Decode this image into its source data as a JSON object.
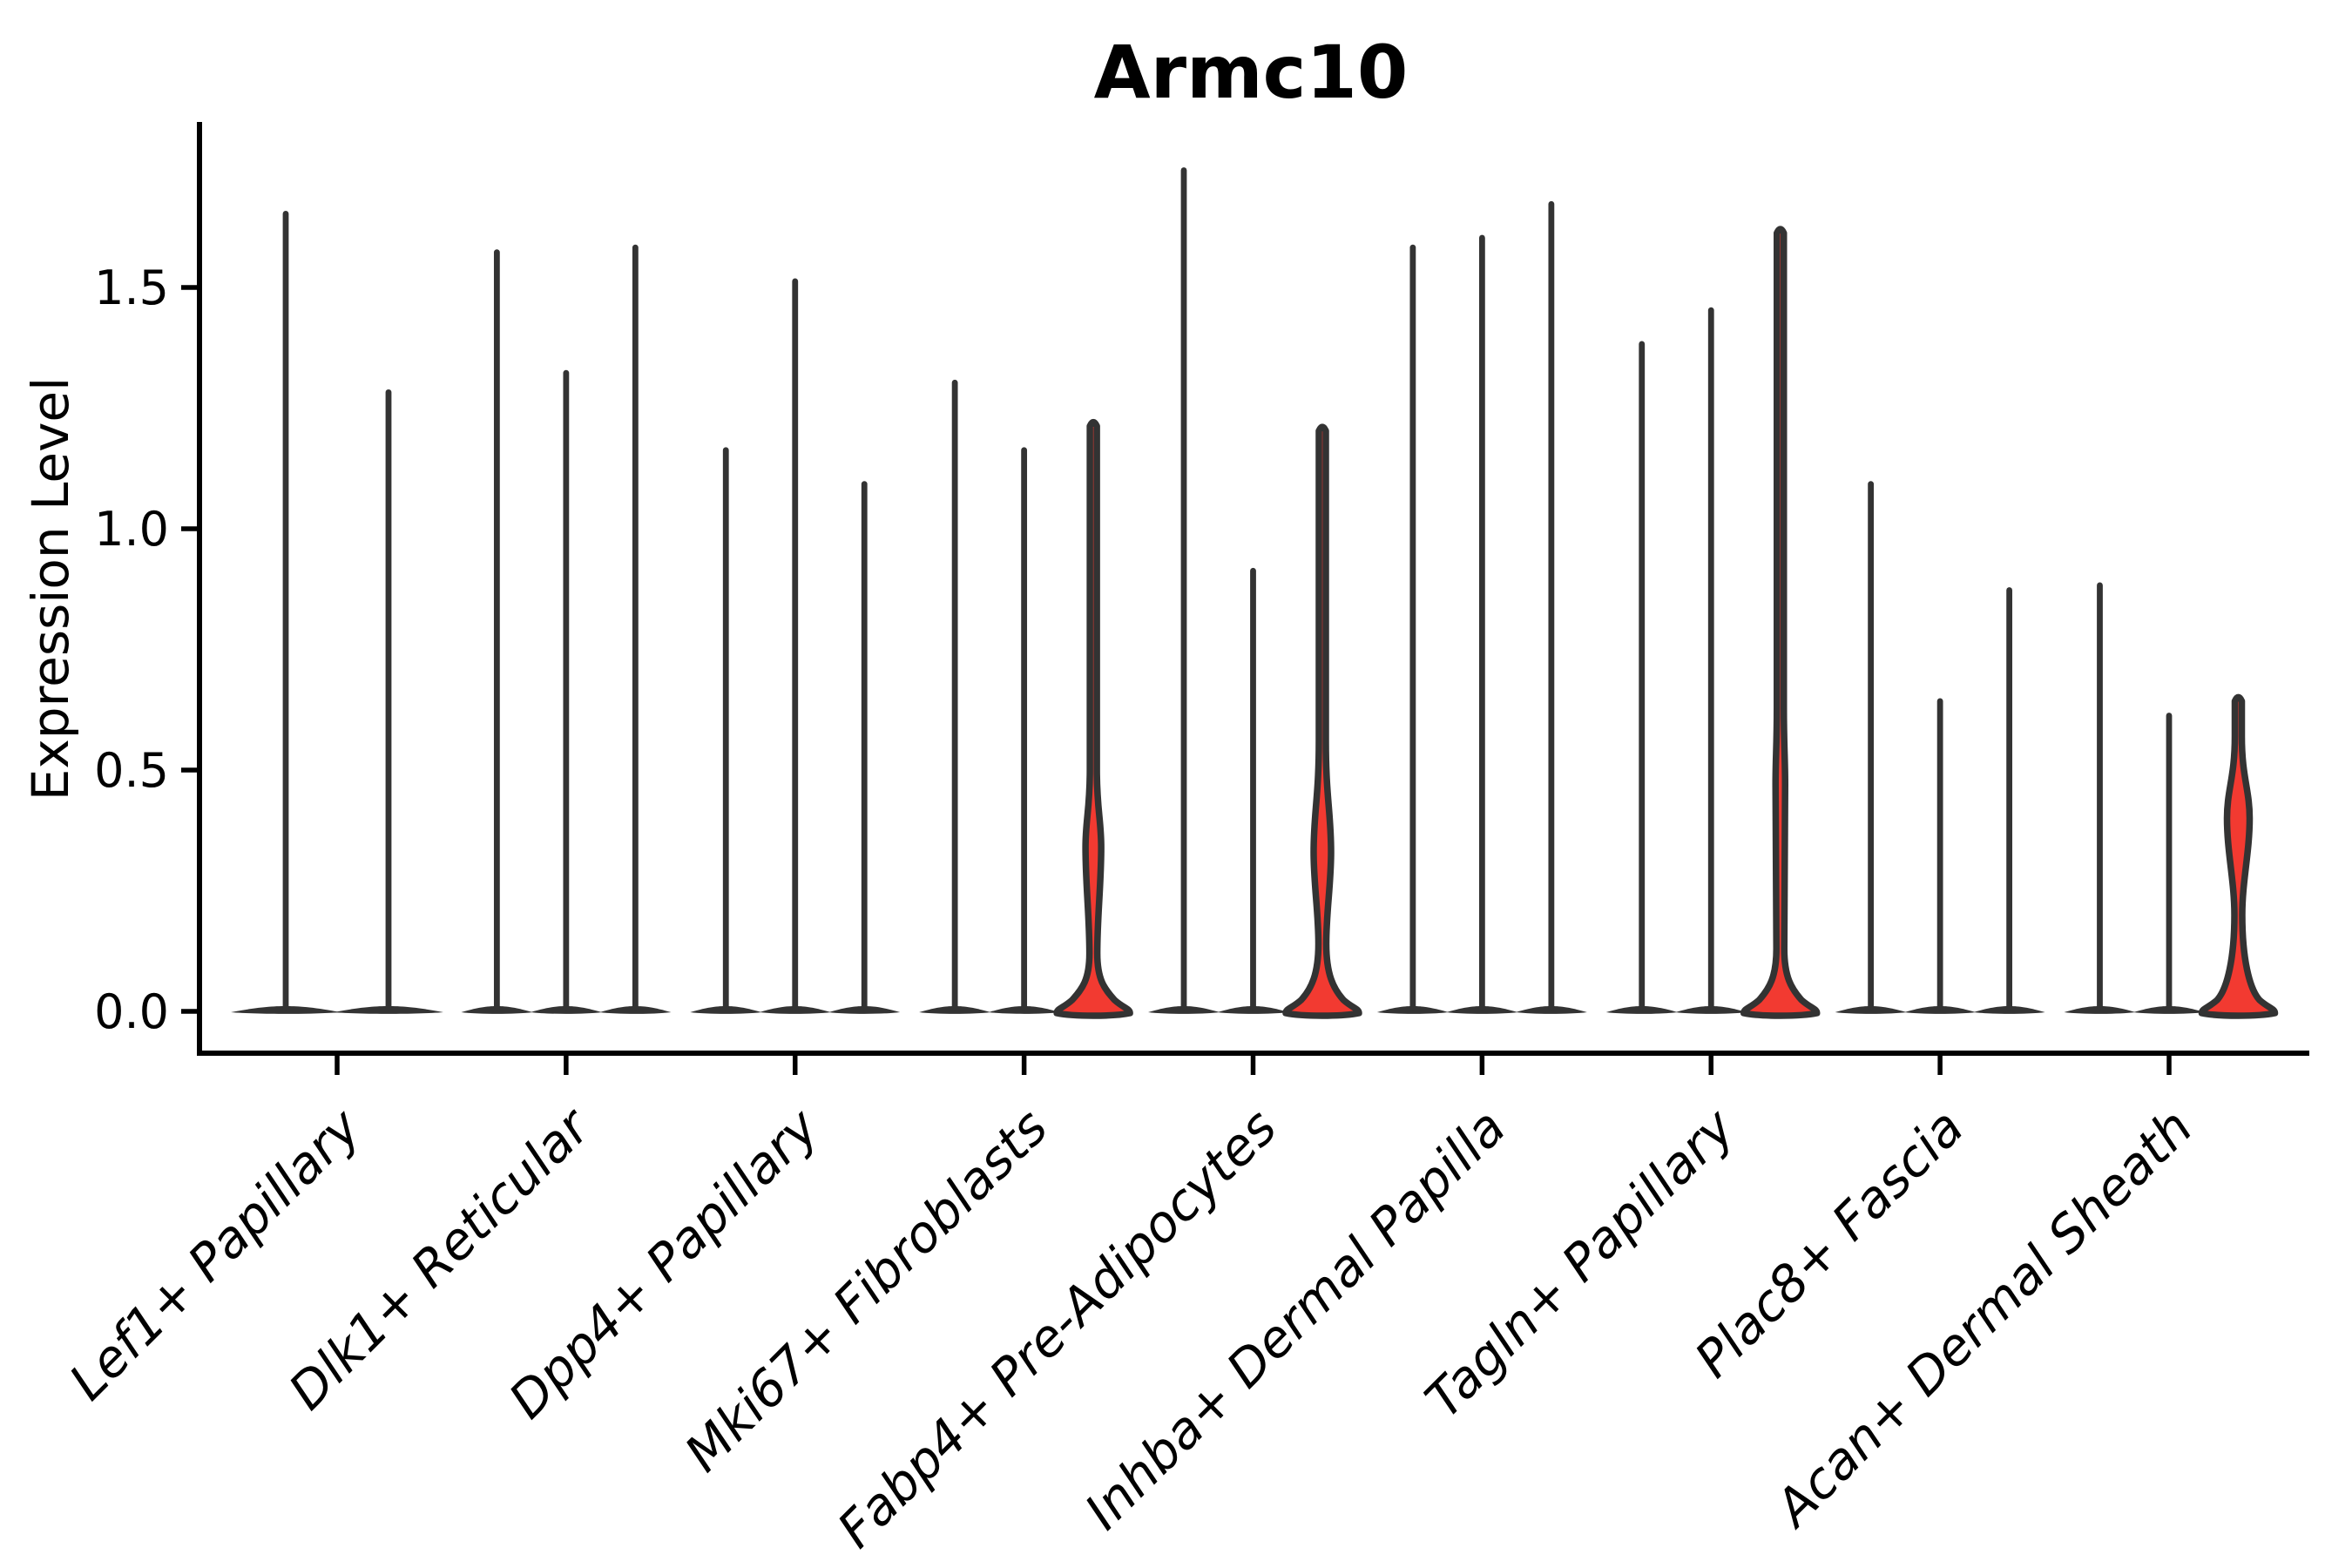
{
  "chart_data": {
    "type": "violin",
    "title": "Armc10",
    "ylabel": "Expression Level",
    "xlabel": "",
    "grid": false,
    "legend": null,
    "ylim": [
      0,
      1.84
    ],
    "yticks": [
      0.0,
      0.5,
      1.0,
      1.5
    ],
    "ytick_labels": [
      "0.0",
      "0.5",
      "1.0",
      "1.5"
    ],
    "categories": [
      "Lef1+ Papillary",
      "Dlk1+ Reticular",
      "Dpp4+ Papillary",
      "Mki67+ Fibroblasts",
      "Fabp4+ Pre-Adipocytes",
      "Inhba+ Dermal Papilla",
      "Tagln+ Papillary",
      "Plac8+ Fascia",
      "Acan+ Dermal Sheath"
    ],
    "groups": [
      {
        "violins": [
          {
            "max": 1.66
          },
          {
            "max": 1.29
          }
        ]
      },
      {
        "violins": [
          {
            "max": 1.58
          },
          {
            "max": 1.33
          },
          {
            "max": 1.59
          }
        ]
      },
      {
        "violins": [
          {
            "max": 1.17
          },
          {
            "max": 1.52
          },
          {
            "max": 1.1
          }
        ]
      },
      {
        "violins": [
          {
            "max": 1.31
          },
          {
            "max": 1.17
          },
          {
            "max": 1.22,
            "fill": "red",
            "spindle": {
              "top": 0.5,
              "peak": 0.34,
              "peak_hw": 9,
              "waist": 0.12
            }
          }
        ]
      },
      {
        "violins": [
          {
            "max": 1.75
          },
          {
            "max": 0.92
          },
          {
            "max": 1.21,
            "fill": "red",
            "spindle": {
              "top": 0.56,
              "peak": 0.33,
              "peak_hw": 10,
              "waist": 0.14
            }
          }
        ]
      },
      {
        "violins": [
          {
            "max": 1.59
          },
          {
            "max": 1.61
          },
          {
            "max": 1.68
          }
        ]
      },
      {
        "violins": [
          {
            "max": 1.39
          },
          {
            "max": 1.46
          },
          {
            "max": 1.62,
            "fill": "red",
            "spindle": {
              "top": 0.63,
              "peak": 0.47,
              "peak_hw": 5.5,
              "waist": 0.13
            }
          }
        ]
      },
      {
        "violins": [
          {
            "max": 1.1
          },
          {
            "max": 0.65
          },
          {
            "max": 0.88
          }
        ]
      },
      {
        "violins": [
          {
            "max": 0.89
          },
          {
            "max": 0.62
          },
          {
            "max": 0.65,
            "fill": "red",
            "spindle": {
              "top": 0.57,
              "peak": 0.4,
              "peak_hw": 13,
              "waist": 0.2
            }
          }
        ]
      }
    ],
    "colors": {
      "red_fill": "#F23A31",
      "violin_outline": "#333333",
      "axis": "#000000",
      "background": "#FFFFFF"
    }
  }
}
